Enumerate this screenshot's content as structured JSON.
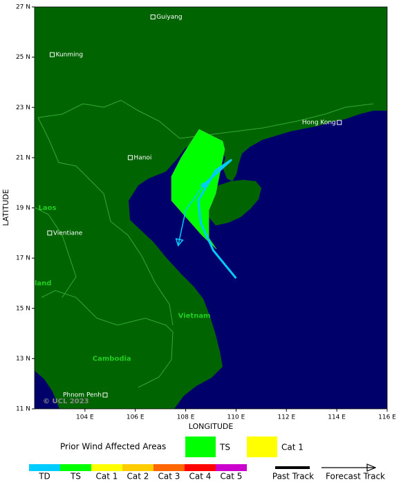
{
  "map": {
    "xlabel": "LONGITUDE",
    "ylabel": "LATITUDE",
    "xlim": [
      102,
      116
    ],
    "ylim": [
      11,
      27
    ],
    "xticks": [
      {
        "value": 104,
        "label": "104 E"
      },
      {
        "value": 106,
        "label": "106 E"
      },
      {
        "value": 108,
        "label": "108 E"
      },
      {
        "value": 110,
        "label": "110 E"
      },
      {
        "value": 112,
        "label": "112 E"
      },
      {
        "value": 114,
        "label": "114 E"
      },
      {
        "value": 116,
        "label": "116 E"
      }
    ],
    "yticks": [
      {
        "value": 11,
        "label": "11 N"
      },
      {
        "value": 13,
        "label": "13 N"
      },
      {
        "value": 15,
        "label": "15 N"
      },
      {
        "value": 17,
        "label": "17 N"
      },
      {
        "value": 19,
        "label": "19 N"
      },
      {
        "value": 21,
        "label": "21 N"
      },
      {
        "value": 23,
        "label": "23 N"
      },
      {
        "value": 25,
        "label": "25 N"
      },
      {
        "value": 27,
        "label": "27 N"
      }
    ],
    "cities": [
      {
        "name": "Guiyang",
        "lon": 106.7,
        "lat": 26.6
      },
      {
        "name": "Kunming",
        "lon": 102.7,
        "lat": 25.1
      },
      {
        "name": "Hanoi",
        "lon": 105.8,
        "lat": 21.0
      },
      {
        "name": "Hong Kong",
        "lon": 114.1,
        "lat": 22.4
      },
      {
        "name": "Vientiane",
        "lon": 102.6,
        "lat": 18.0
      },
      {
        "name": "Phnom Penh",
        "lon": 104.8,
        "lat": 11.55
      }
    ],
    "regions": [
      {
        "name": "Laos",
        "lon": 102.15,
        "lat": 19.0
      },
      {
        "name": "land",
        "lon": 102.0,
        "lat": 16.0
      },
      {
        "name": "Vietnam",
        "lon": 107.7,
        "lat": 14.7
      },
      {
        "name": "Cambodia",
        "lon": 104.3,
        "lat": 13.0
      }
    ],
    "past_track": {
      "lon": [
        110.0,
        109.1,
        108.6,
        108.5,
        109.2,
        109.8,
        108.7
      ],
      "lat": [
        16.2,
        17.3,
        18.4,
        19.3,
        20.5,
        20.9,
        19.9
      ]
    },
    "forecast_track": {
      "lon": [
        108.7,
        108.0,
        107.7
      ],
      "lat": [
        19.9,
        18.9,
        17.5
      ]
    },
    "copyright": "© UCL 2023"
  },
  "legend": {
    "wind_title": "Prior Wind Affected Areas",
    "wind_items": [
      {
        "label": "TS",
        "color": "#00ff00"
      },
      {
        "label": "Cat 1",
        "color": "#ffff00"
      }
    ],
    "scale": [
      {
        "label": "TD",
        "color": "#00ccff"
      },
      {
        "label": "TS",
        "color": "#00ff00"
      },
      {
        "label": "Cat 1",
        "color": "#ffff00"
      },
      {
        "label": "Cat 2",
        "color": "#ffcc00"
      },
      {
        "label": "Cat 3",
        "color": "#ff6600"
      },
      {
        "label": "Cat 4",
        "color": "#ff0000"
      },
      {
        "label": "Cat 5",
        "color": "#cc00cc"
      }
    ],
    "past_track": "Past Track",
    "forecast_track": "Forecast Track"
  }
}
